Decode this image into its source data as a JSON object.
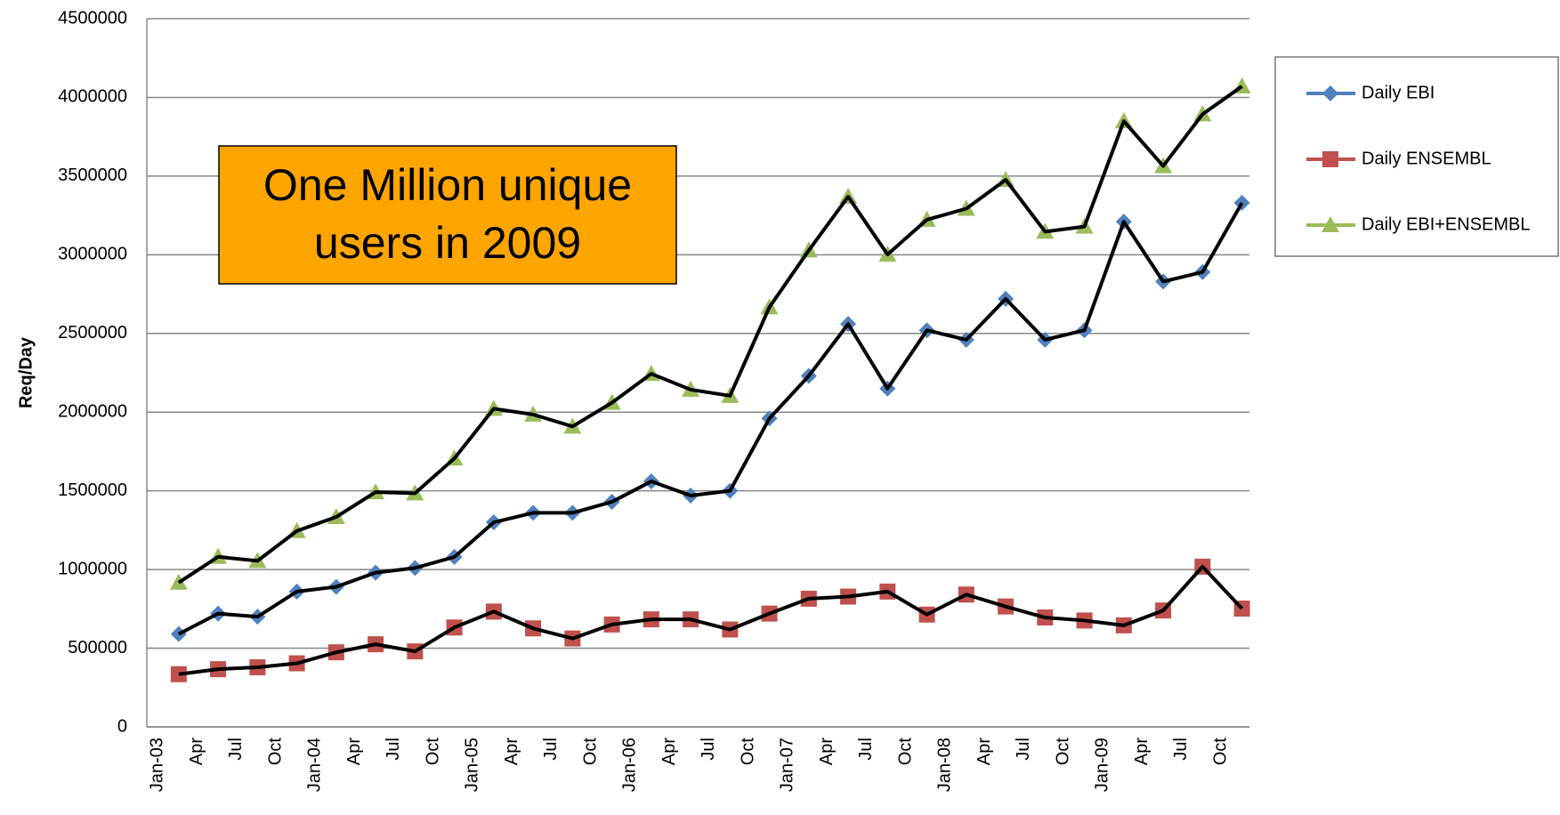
{
  "chart_data": {
    "type": "line",
    "y_label": "Req/Day",
    "annotation": [
      "One Million unique",
      "users in 2009"
    ],
    "categories": [
      "Jan-03",
      "Apr",
      "Jul",
      "Oct",
      "Jan-04",
      "Apr",
      "Jul",
      "Oct",
      "Jan-05",
      "Apr",
      "Jul",
      "Oct",
      "Jan-06",
      "Apr",
      "Jul",
      "Oct",
      "Jan-07",
      "Apr",
      "Jul",
      "Oct",
      "Jan-08",
      "Apr",
      "Jul",
      "Oct",
      "Jan-09",
      "Apr",
      "Jul",
      "Oct"
    ],
    "series": [
      {
        "name": "Daily EBI",
        "color": "#4f81bd",
        "marker": "diamond",
        "values": [
          590000,
          720000,
          700000,
          860000,
          890000,
          980000,
          1010000,
          1080000,
          1300000,
          1360000,
          1360000,
          1430000,
          1560000,
          1470000,
          1500000,
          1960000,
          2230000,
          2560000,
          2150000,
          2520000,
          2460000,
          2720000,
          2460000,
          2520000,
          3210000,
          2830000,
          2890000,
          3330000
        ]
      },
      {
        "name": "Daily ENSEMBL",
        "color": "#c0504d",
        "marker": "square",
        "values": [
          335000,
          367000,
          379000,
          404000,
          474000,
          525000,
          480000,
          632000,
          733000,
          626000,
          562000,
          651000,
          683000,
          683000,
          619000,
          720000,
          815000,
          828000,
          860000,
          714000,
          841000,
          765000,
          695000,
          676000,
          645000,
          740000,
          1018000,
          752000
        ]
      },
      {
        "name": "Daily EBI+ENSEMBL",
        "color": "#9bbb59",
        "marker": "triangle",
        "values": [
          917000,
          1081000,
          1055000,
          1245000,
          1334000,
          1492000,
          1485000,
          1706000,
          2022000,
          1985000,
          1909000,
          2060000,
          2244000,
          2143000,
          2104000,
          2667000,
          3028000,
          3369000,
          3002000,
          3223000,
          3293000,
          3476000,
          3147000,
          3179000,
          3849000,
          3564000,
          3893000,
          4070000
        ]
      }
    ],
    "line_color": "#000000",
    "ylim": [
      0,
      4500000
    ],
    "yticks": [
      0,
      500000,
      1000000,
      1500000,
      2000000,
      2500000,
      3000000,
      3500000,
      4000000,
      4500000
    ],
    "grid": true,
    "legend": "right"
  }
}
